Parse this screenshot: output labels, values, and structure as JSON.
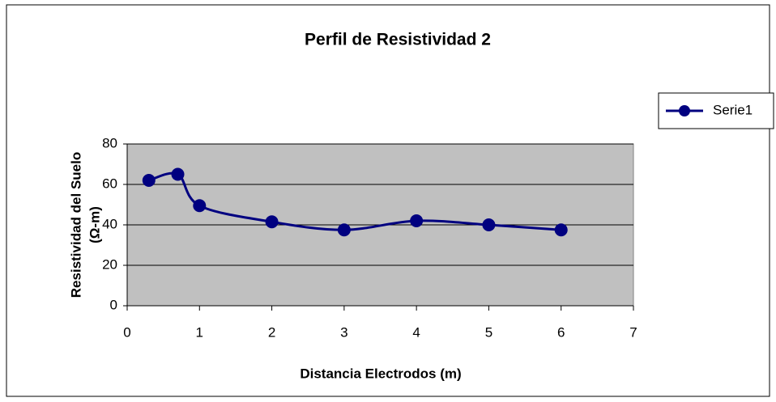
{
  "chart_data": {
    "type": "scatter",
    "title": "Perfil de Resistividad 2",
    "x_label": "Distancia Electrodos (m)",
    "y_label": [
      "Resistividad del Suelo",
      "(Ω-m)"
    ],
    "x": [
      0.3,
      0.7,
      1,
      2,
      3,
      4,
      5,
      6
    ],
    "series": [
      {
        "name": "Serie1",
        "color": "#000080",
        "values": [
          62,
          65,
          49.5,
          41.5,
          37.5,
          42,
          40,
          37.5
        ]
      }
    ],
    "xlim": [
      0,
      7
    ],
    "xticks": [
      0,
      1,
      2,
      3,
      4,
      5,
      6,
      7
    ],
    "ylim": [
      0,
      80
    ],
    "yticks": [
      0,
      20,
      40,
      60,
      80
    ],
    "grid": true,
    "legend": "right",
    "smooth": true
  }
}
